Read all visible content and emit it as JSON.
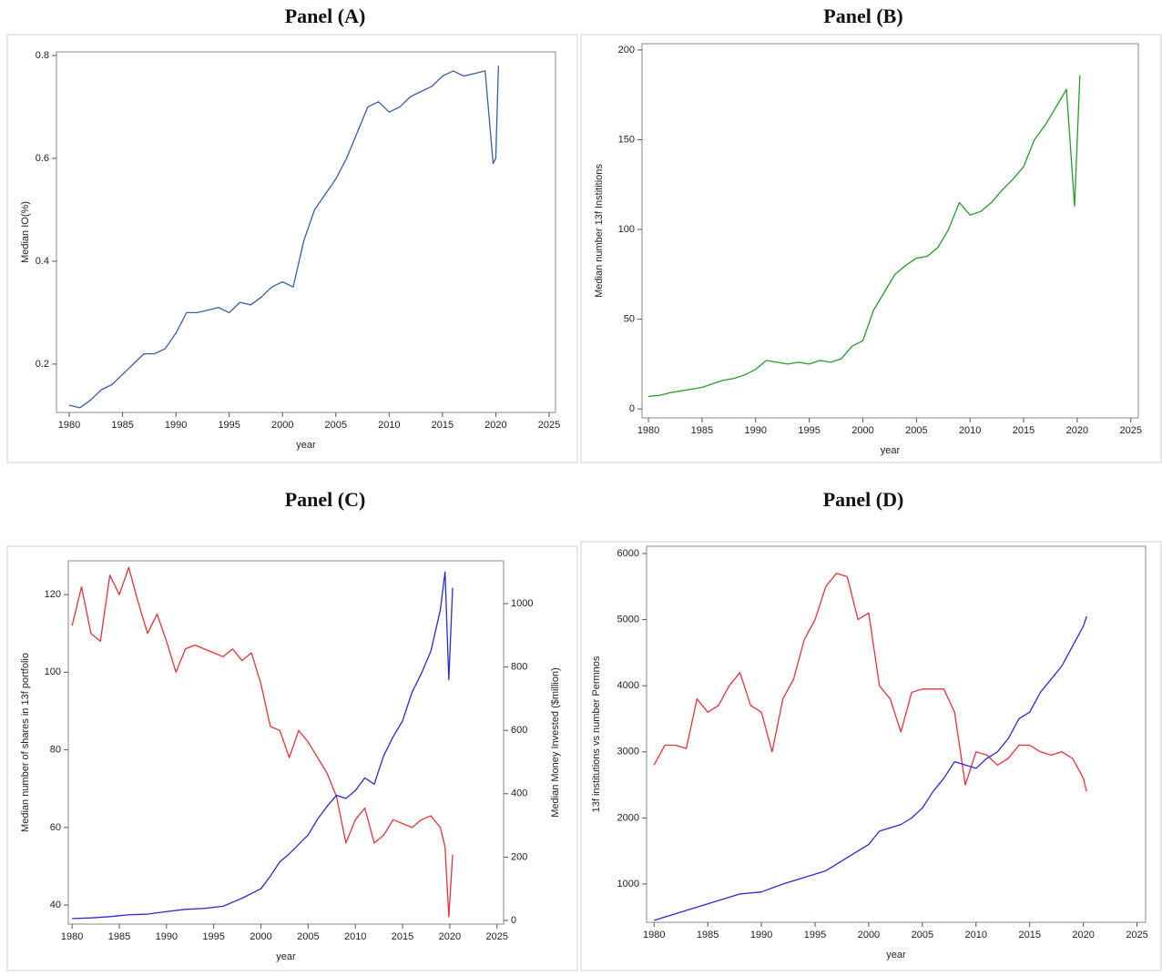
{
  "chart_data": [
    {
      "type": "line",
      "title": "Panel (A)",
      "x_label": "year",
      "y_label": "Median IO(%)",
      "xlim": [
        1978.8,
        2025.6
      ],
      "xticks": [
        1980,
        1985,
        1990,
        1995,
        2000,
        2005,
        2010,
        2015,
        2020,
        2025
      ],
      "ylim": [
        0.106,
        0.807
      ],
      "yticks": [
        0.2,
        0.4,
        0.6,
        0.8
      ],
      "series": [
        {
          "color": "#3a5da8",
          "x": [
            1980,
            1981,
            1982,
            1983,
            1984,
            1985,
            1986,
            1987,
            1988,
            1989,
            1990,
            1991,
            1992,
            1993,
            1994,
            1995,
            1996,
            1997,
            1998,
            1999,
            2000,
            2001,
            2002,
            2003,
            2004,
            2005,
            2006,
            2007,
            2008,
            2009,
            2010,
            2011,
            2012,
            2013,
            2014,
            2015,
            2016,
            2017,
            2018,
            2019,
            2019.75,
            2020,
            2020.25
          ],
          "values": [
            0.12,
            0.115,
            0.13,
            0.15,
            0.16,
            0.18,
            0.2,
            0.22,
            0.22,
            0.23,
            0.26,
            0.3,
            0.3,
            0.305,
            0.31,
            0.3,
            0.32,
            0.315,
            0.33,
            0.35,
            0.36,
            0.35,
            0.44,
            0.5,
            0.53,
            0.56,
            0.6,
            0.65,
            0.7,
            0.71,
            0.69,
            0.7,
            0.72,
            0.73,
            0.74,
            0.76,
            0.77,
            0.76,
            0.765,
            0.77,
            0.59,
            0.6,
            0.78
          ]
        }
      ]
    },
    {
      "type": "line",
      "title": "Panel (B)",
      "x_label": "year",
      "y_label": "Median number 13f Instititions",
      "xlim": [
        1979.4,
        2025.7
      ],
      "xticks": [
        1980,
        1985,
        1990,
        1995,
        2000,
        2005,
        2010,
        2015,
        2020,
        2025
      ],
      "ylim": [
        -5,
        203.5
      ],
      "yticks": [
        0,
        50,
        100,
        150,
        200
      ],
      "series": [
        {
          "color": "#2a9a2a",
          "x": [
            1980,
            1981,
            1982,
            1983,
            1984,
            1985,
            1986,
            1987,
            1988,
            1989,
            1990,
            1991,
            1992,
            1993,
            1994,
            1995,
            1996,
            1997,
            1998,
            1999,
            2000,
            2001,
            2002,
            2003,
            2004,
            2005,
            2006,
            2007,
            2008,
            2009,
            2010,
            2011,
            2012,
            2013,
            2014,
            2015,
            2016,
            2017,
            2018,
            2019,
            2019.75,
            2020.25
          ],
          "values": [
            7,
            7.5,
            9,
            10,
            11,
            12,
            14,
            16,
            17,
            19,
            22,
            27,
            26,
            25,
            26,
            25,
            27,
            26,
            28,
            35,
            38,
            55,
            65,
            75,
            80,
            84,
            85,
            90,
            100,
            115,
            108,
            110,
            115,
            122,
            128,
            135,
            150,
            158,
            168,
            178,
            113,
            186
          ]
        }
      ]
    },
    {
      "type": "line",
      "title": "Panel (C)",
      "x_label": "year",
      "y_label": "Median number of shares in 13f portfolio",
      "y2_label": "Median Money Invested ($million)",
      "xlim": [
        1979.6,
        2025.7
      ],
      "xticks": [
        1980,
        1985,
        1990,
        1995,
        2000,
        2005,
        2010,
        2015,
        2020,
        2025
      ],
      "ylim": [
        35.1,
        128.7
      ],
      "yticks": [
        40,
        60,
        80,
        100,
        120
      ],
      "y2lim": [
        -11.5,
        1135
      ],
      "y2ticks": [
        0,
        200,
        400,
        600,
        800,
        1000
      ],
      "series": [
        {
          "color": "#e8323a",
          "x": [
            1980,
            1981,
            1982,
            1983,
            1984,
            1985,
            1986,
            1987,
            1988,
            1989,
            1990,
            1991,
            1992,
            1993,
            1994,
            1995,
            1996,
            1997,
            1998,
            1999,
            2000,
            2001,
            2002,
            2003,
            2004,
            2005,
            2006,
            2007,
            2008,
            2009,
            2010,
            2011,
            2012,
            2013,
            2014,
            2015,
            2016,
            2017,
            2018,
            2019,
            2019.5,
            2019.9,
            2020.3
          ],
          "values": [
            112,
            122,
            110,
            108,
            125,
            120,
            127,
            118,
            110,
            115,
            108,
            100,
            106,
            107,
            106,
            105,
            104,
            106,
            103,
            105,
            97,
            86,
            85,
            78,
            85,
            82,
            78,
            74,
            68,
            56,
            62,
            65,
            56,
            58,
            62,
            61,
            60,
            62,
            63,
            60,
            55,
            37,
            53
          ]
        },
        {
          "color": "#2a2ad8",
          "axis": "y2",
          "x": [
            1980,
            1982,
            1984,
            1986,
            1988,
            1990,
            1992,
            1994,
            1996,
            1998,
            2000,
            2001,
            2002,
            2003,
            2004,
            2005,
            2006,
            2007,
            2008,
            2009,
            2010,
            2011,
            2012,
            2013,
            2014,
            2015,
            2016,
            2017,
            2018,
            2019,
            2019.5,
            2019.9,
            2020.3
          ],
          "values": [
            6,
            8,
            12,
            18,
            20,
            28,
            35,
            38,
            45,
            70,
            100,
            140,
            185,
            210,
            240,
            270,
            320,
            360,
            395,
            385,
            410,
            450,
            430,
            520,
            580,
            630,
            720,
            780,
            850,
            980,
            1100,
            760,
            1050
          ]
        }
      ]
    },
    {
      "type": "line",
      "title": "Panel (D)",
      "x_label": "year",
      "y_label": "13f institutions vs number Permnos",
      "xlim": [
        1979.3,
        2025.8
      ],
      "xticks": [
        1980,
        1985,
        1990,
        1995,
        2000,
        2005,
        2010,
        2015,
        2020,
        2025
      ],
      "ylim": [
        421,
        6110
      ],
      "yticks": [
        1000,
        2000,
        3000,
        4000,
        5000,
        6000
      ],
      "series": [
        {
          "color": "#e8323a",
          "x": [
            1980,
            1981,
            1982,
            1983,
            1984,
            1985,
            1986,
            1987,
            1988,
            1989,
            1990,
            1991,
            1992,
            1993,
            1994,
            1995,
            1996,
            1997,
            1998,
            1999,
            2000,
            2001,
            2002,
            2003,
            2004,
            2005,
            2006,
            2007,
            2008,
            2009,
            2010,
            2011,
            2012,
            2013,
            2014,
            2015,
            2016,
            2017,
            2018,
            2019,
            2020,
            2020.3
          ],
          "values": [
            2800,
            3100,
            3100,
            3050,
            3800,
            3600,
            3700,
            4000,
            4200,
            3700,
            3600,
            3000,
            3800,
            4100,
            4700,
            5000,
            5500,
            5700,
            5650,
            5000,
            5100,
            4000,
            3800,
            3300,
            3900,
            3950,
            3950,
            3950,
            3600,
            2500,
            3000,
            2950,
            2800,
            2900,
            3100,
            3100,
            3000,
            2950,
            3000,
            2900,
            2600,
            2400
          ]
        },
        {
          "color": "#2a2ad8",
          "x": [
            1980,
            1982,
            1984,
            1986,
            1988,
            1990,
            1992,
            1994,
            1996,
            1998,
            2000,
            2001,
            2002,
            2003,
            2004,
            2005,
            2006,
            2007,
            2008,
            2009,
            2010,
            2011,
            2012,
            2013,
            2014,
            2015,
            2016,
            2017,
            2018,
            2019,
            2020,
            2020.3
          ],
          "values": [
            450,
            550,
            650,
            750,
            850,
            880,
            1000,
            1100,
            1200,
            1400,
            1600,
            1800,
            1850,
            1900,
            2000,
            2150,
            2400,
            2600,
            2850,
            2800,
            2750,
            2900,
            3000,
            3200,
            3500,
            3600,
            3900,
            4100,
            4300,
            4600,
            4900,
            5050
          ]
        }
      ]
    }
  ]
}
